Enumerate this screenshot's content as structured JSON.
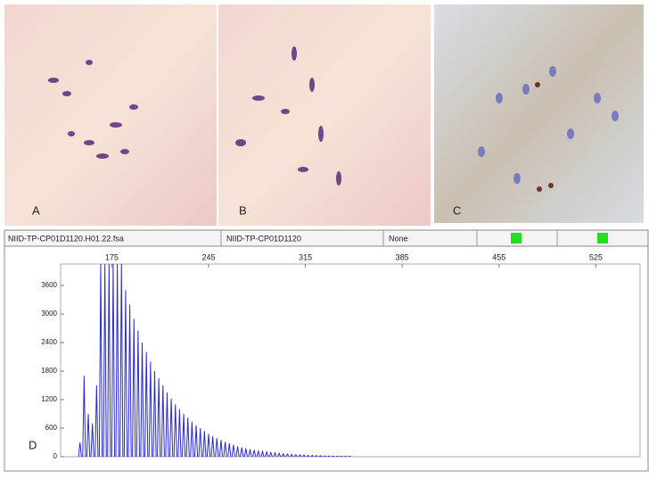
{
  "panels": [
    {
      "label": "A"
    },
    {
      "label": "B"
    },
    {
      "label": "C"
    }
  ],
  "header": {
    "file": "NIID-TP-CP01D1120.H01.22.fsa",
    "sample": "NIID-TP-CP01D1120",
    "panel": "None"
  },
  "chart_data": {
    "type": "peaks",
    "label": "D",
    "xlim": [
      138,
      557
    ],
    "xticks": [
      175,
      245,
      315,
      385,
      455,
      525
    ],
    "ylim": [
      0,
      4050
    ],
    "yticks": [
      0,
      600,
      1200,
      1800,
      2400,
      3000,
      3600
    ],
    "x": [
      152,
      155,
      158,
      161,
      164,
      167,
      170,
      173,
      176,
      179,
      182,
      185,
      188,
      191,
      194,
      197,
      200,
      203,
      206,
      209,
      212,
      215,
      218,
      221,
      224,
      227,
      230,
      233,
      236,
      239,
      242,
      245,
      248,
      251,
      254,
      257,
      260,
      263,
      266,
      269,
      272,
      275,
      278,
      281,
      284,
      287,
      290,
      293,
      296,
      299,
      302,
      305,
      308,
      311,
      314,
      317,
      320,
      323,
      326,
      329,
      332,
      335,
      338,
      341,
      344,
      347
    ],
    "series": [
      {
        "color": "#2a2ad0",
        "values": [
          300,
          1700,
          900,
          700,
          1500,
          4050,
          4050,
          4050,
          4050,
          4050,
          4050,
          3500,
          3200,
          2900,
          2650,
          2400,
          2200,
          2000,
          1800,
          1650,
          1500,
          1350,
          1220,
          1100,
          1000,
          900,
          820,
          740,
          660,
          600,
          540,
          480,
          430,
          390,
          350,
          310,
          280,
          250,
          220,
          195,
          175,
          155,
          140,
          125,
          110,
          100,
          90,
          80,
          70,
          62,
          55,
          48,
          42,
          38,
          34,
          30,
          27,
          24,
          21,
          18,
          16,
          14,
          12,
          10,
          9,
          8
        ]
      }
    ]
  }
}
